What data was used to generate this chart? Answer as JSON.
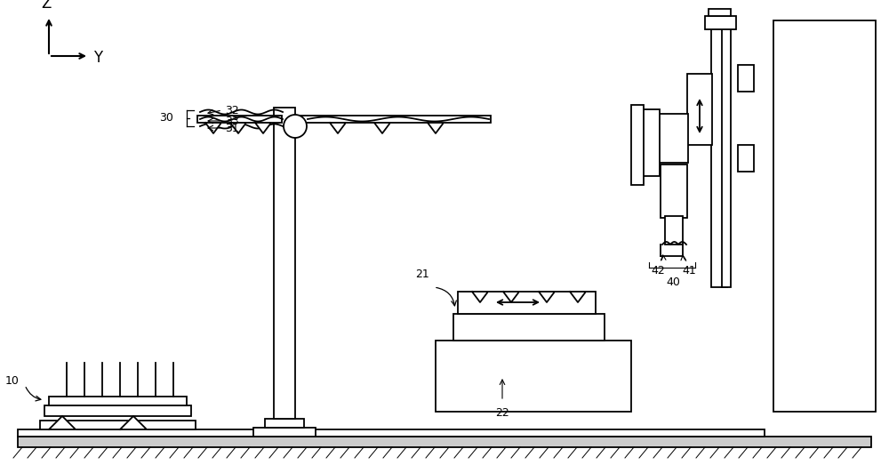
{
  "bg_color": "#ffffff",
  "line_color": "#000000",
  "lw": 1.3,
  "fig_width": 10.0,
  "fig_height": 5.23,
  "dpi": 100
}
